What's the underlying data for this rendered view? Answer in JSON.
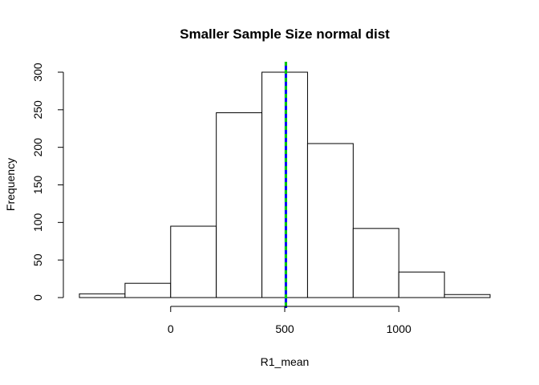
{
  "chart_data": {
    "type": "bar",
    "title": "Smaller Sample Size normal dist",
    "xlabel": "R1_mean",
    "ylabel": "Frequency",
    "bins": [
      {
        "from": -400,
        "to": -200,
        "count": 5
      },
      {
        "from": -200,
        "to": 0,
        "count": 19
      },
      {
        "from": 0,
        "to": 200,
        "count": 95
      },
      {
        "from": 200,
        "to": 400,
        "count": 246
      },
      {
        "from": 400,
        "to": 600,
        "count": 300
      },
      {
        "from": 600,
        "to": 800,
        "count": 205
      },
      {
        "from": 800,
        "to": 1000,
        "count": 92
      },
      {
        "from": 1000,
        "to": 1200,
        "count": 34
      },
      {
        "from": 1200,
        "to": 1400,
        "count": 4
      }
    ],
    "x_ticks": [
      0,
      500,
      1000
    ],
    "x_tick_labels": [
      "0",
      "500",
      "1000"
    ],
    "y_ticks": [
      0,
      50,
      100,
      150,
      200,
      250,
      300
    ],
    "y_tick_labels": [
      "0",
      "50",
      "100",
      "150",
      "200",
      "250",
      "300"
    ],
    "xlim": [
      -400,
      1400
    ],
    "ylim": [
      0,
      300
    ],
    "grid": false,
    "bar_fill": "#ffffff",
    "bar_stroke": "#000000",
    "vlines": [
      {
        "x": 505,
        "color": "#0000ff"
      },
      {
        "x": 505,
        "color": "#00cc00",
        "dashed": true
      }
    ]
  }
}
